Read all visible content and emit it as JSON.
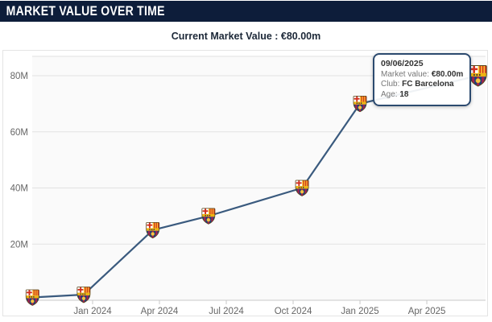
{
  "header": {
    "title": "MARKET VALUE OVER TIME"
  },
  "subtitle": "Current Market Value : €80.00m",
  "tooltip": {
    "date": "09/06/2025",
    "rows": [
      {
        "label": "Market value: ",
        "value": "€80.00m"
      },
      {
        "label": "Club: ",
        "value": "FC Barcelona"
      },
      {
        "label": "Age: ",
        "value": "18"
      }
    ]
  },
  "colors": {
    "header_bg": "#0d1d3a",
    "line": "#3a5a7e",
    "grid": "#e2e2e2",
    "axis": "#c8c8c8",
    "tick_label": "#666666",
    "tooltip_border": "#2c4a6f",
    "plot_bg": "#fafafa"
  },
  "chart_data": {
    "type": "line",
    "title": "Market Value Over Time",
    "unit": "EUR millions",
    "xlabel": "",
    "ylabel": "",
    "ylim": [
      0,
      87
    ],
    "grid": "horizontal",
    "legend": "none",
    "marker": "fc-barcelona-crest",
    "y_ticks": [
      {
        "label": "20M",
        "value": 20
      },
      {
        "label": "40M",
        "value": 40
      },
      {
        "label": "60M",
        "value": 60
      },
      {
        "label": "80M",
        "value": 80
      }
    ],
    "x_ticks": [
      {
        "label": "Jan 2024",
        "months_from_jan_2024": 0
      },
      {
        "label": "Apr 2024",
        "months_from_jan_2024": 3
      },
      {
        "label": "Jul 2024",
        "months_from_jan_2024": 6
      },
      {
        "label": "Oct 2024",
        "months_from_jan_2024": 9
      },
      {
        "label": "Jan 2025",
        "months_from_jan_2024": 12
      },
      {
        "label": "Apr 2025",
        "months_from_jan_2024": 15
      }
    ],
    "points": [
      {
        "label": "Oct 2023",
        "months_from_jan_2024": -2.7,
        "value_m": 1
      },
      {
        "label": "Dec 2023",
        "months_from_jan_2024": -0.4,
        "value_m": 2
      },
      {
        "label": "Mar 2024",
        "months_from_jan_2024": 2.7,
        "value_m": 25
      },
      {
        "label": "Jun 2024",
        "months_from_jan_2024": 5.2,
        "value_m": 30
      },
      {
        "label": "Oct 2024",
        "months_from_jan_2024": 9.4,
        "value_m": 40
      },
      {
        "label": "Dec 2024",
        "months_from_jan_2024": 12.0,
        "value_m": 70
      },
      {
        "label": "09/06/2025",
        "months_from_jan_2024": 17.3,
        "value_m": 80
      }
    ],
    "highlighted_point": {
      "date": "09/06/2025",
      "market_value": "€80.00m",
      "club": "FC Barcelona",
      "age": 18
    }
  }
}
